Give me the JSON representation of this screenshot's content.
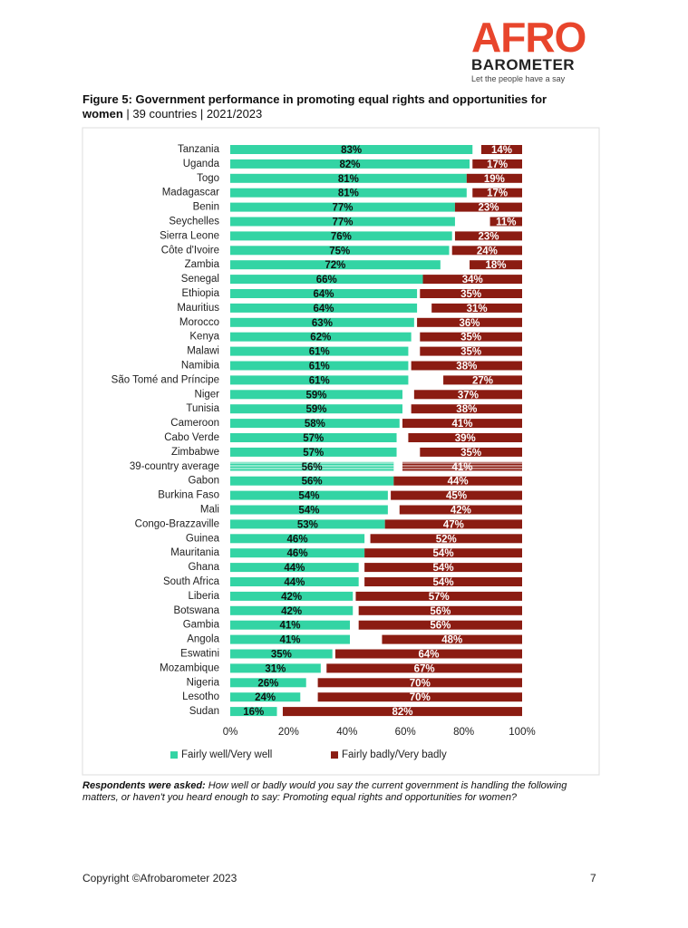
{
  "header": {
    "logo_main": "AFR",
    "logo_o": "O",
    "logo_sub": "BAROMETER",
    "tagline": "Let the people have a say"
  },
  "figure": {
    "title": "Figure 5: Government performance in promoting equal rights and opportunities for women",
    "subtitle": " | 39 countries | 2021/2023"
  },
  "chart_data": {
    "type": "bar",
    "orientation": "horizontal",
    "categories": [
      "Tanzania",
      "Uganda",
      "Togo",
      "Madagascar",
      "Benin",
      "Seychelles",
      "Sierra Leone",
      "Côte d'Ivoire",
      "Zambia",
      "Senegal",
      "Ethiopia",
      "Mauritius",
      "Morocco",
      "Kenya",
      "Malawi",
      "Namibia",
      "São Tomé and Príncipe",
      "Niger",
      "Tunisia",
      "Cameroon",
      "Cabo Verde",
      "Zimbabwe",
      "39-country average",
      "Gabon",
      "Burkina Faso",
      "Mali",
      "Congo-Brazzaville",
      "Guinea",
      "Mauritania",
      "Ghana",
      "South Africa",
      "Liberia",
      "Botswana",
      "Gambia",
      "Angola",
      "Eswatini",
      "Mozambique",
      "Nigeria",
      "Lesotho",
      "Sudan"
    ],
    "series": [
      {
        "name": "Fairly well/Very well",
        "color": "#33d4a4",
        "values": [
          83,
          82,
          81,
          81,
          77,
          77,
          76,
          75,
          72,
          66,
          64,
          64,
          63,
          62,
          61,
          61,
          61,
          59,
          59,
          58,
          57,
          57,
          56,
          56,
          54,
          54,
          53,
          46,
          46,
          44,
          44,
          42,
          42,
          41,
          41,
          35,
          31,
          26,
          24,
          16
        ],
        "value_labels": [
          "83%",
          "82%",
          "81%",
          "81%",
          "77%",
          "77%",
          "76%",
          "75%",
          "72%",
          "66%",
          "64%",
          "64%",
          "63%",
          "62%",
          "61%",
          "61%",
          "61%",
          "59%",
          "59%",
          "58%",
          "57%",
          "57%",
          "56%",
          "56%",
          "54%",
          "54%",
          "53%",
          "46%",
          "46%",
          "44%",
          "44%",
          "42%",
          "42%",
          "41%",
          "41%",
          "35%",
          "31%",
          "26%",
          "24%",
          "16%"
        ]
      },
      {
        "name": "Fairly badly/Very badly",
        "color": "#8b1c12",
        "values": [
          14,
          17,
          19,
          17,
          23,
          11,
          23,
          24,
          18,
          34,
          35,
          31,
          36,
          35,
          35,
          38,
          27,
          37,
          38,
          41,
          39,
          35,
          41,
          44,
          45,
          42,
          47,
          52,
          54,
          54,
          54,
          57,
          56,
          56,
          48,
          64,
          67,
          70,
          70,
          82
        ],
        "value_labels": [
          "14%",
          "17%",
          "19%",
          "17%",
          "23%",
          "11%",
          "23%",
          "24%",
          "18%",
          "34%",
          "35%",
          "31%",
          "36%",
          "35%",
          "35%",
          "38%",
          "27%",
          "37%",
          "38%",
          "41%",
          "39%",
          "35%",
          "41%",
          "44%",
          "45%",
          "42%",
          "47%",
          "52%",
          "54%",
          "54%",
          "54%",
          "57%",
          "56%",
          "56%",
          "48%",
          "64%",
          "67%",
          "70%",
          "70%",
          "82%"
        ]
      }
    ],
    "xlim": [
      0,
      100
    ],
    "xticks": [
      {
        "value": 0,
        "label": "0%"
      },
      {
        "value": 20,
        "label": "20%"
      },
      {
        "value": 40,
        "label": "40%"
      },
      {
        "value": 60,
        "label": "60%"
      },
      {
        "value": 80,
        "label": "80%"
      },
      {
        "value": 100,
        "label": "100%"
      }
    ],
    "legend": "bottom"
  },
  "note": {
    "lead": "Respondents were asked:",
    "text": " How well or badly would you say the current government is handling the following matters, or haven't you heard enough to say: Promoting equal rights and opportunities for women?"
  },
  "footer": {
    "copyright": "Copyright ©Afrobarometer 2023",
    "page": "7"
  }
}
